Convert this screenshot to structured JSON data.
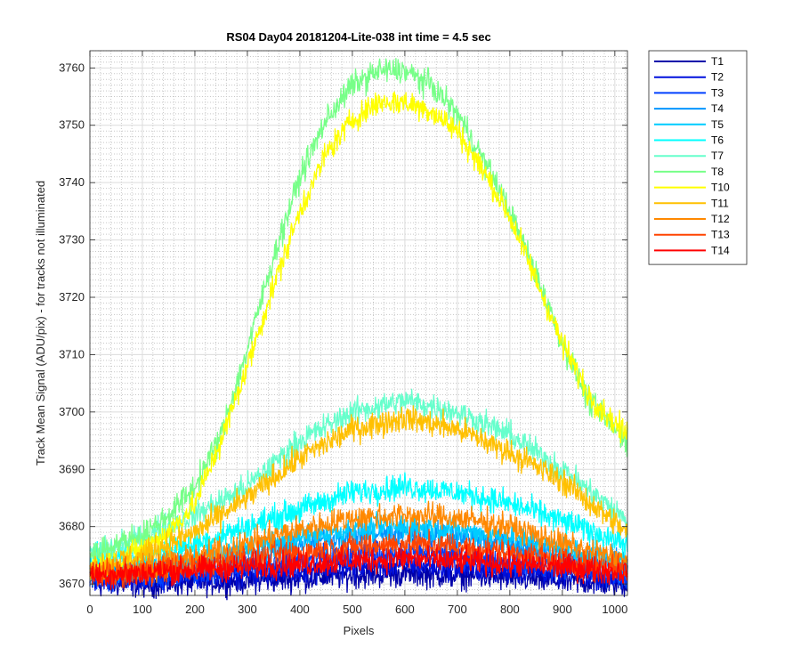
{
  "chart_data": {
    "type": "line",
    "title": "RS04 Day04 20181204-Lite-038 int time = 4.5 sec",
    "xlabel": "Pixels",
    "ylabel": "Track Mean Signal (ADU/pix) - for tracks not illuminated",
    "xlim": [
      0,
      1024
    ],
    "ylim": [
      3668,
      3763
    ],
    "xticks": [
      0,
      100,
      200,
      300,
      400,
      500,
      600,
      700,
      800,
      900,
      1000
    ],
    "yticks": [
      3670,
      3680,
      3690,
      3700,
      3710,
      3720,
      3730,
      3740,
      3750,
      3760
    ],
    "grid": true,
    "minor_grid": true,
    "legend_position": "outside-top-right",
    "noise_amplitude": 1.6,
    "series": [
      {
        "name": "T1",
        "color": "#0000aa",
        "x": [
          0,
          100,
          200,
          300,
          400,
          500,
          600,
          700,
          800,
          900,
          1024
        ],
        "y": [
          3670,
          3670,
          3670.2,
          3670.6,
          3671,
          3671.5,
          3671.8,
          3671.5,
          3671,
          3670.5,
          3670
        ]
      },
      {
        "name": "T2",
        "color": "#0010dd",
        "x": [
          0,
          100,
          200,
          300,
          400,
          500,
          600,
          700,
          800,
          900,
          1024
        ],
        "y": [
          3671,
          3671,
          3671.5,
          3672,
          3672.5,
          3673,
          3673.5,
          3673,
          3672.5,
          3672,
          3671
        ]
      },
      {
        "name": "T3",
        "color": "#0040ff",
        "x": [
          0,
          100,
          200,
          300,
          400,
          500,
          600,
          700,
          800,
          900,
          1024
        ],
        "y": [
          3671,
          3671.5,
          3672,
          3673,
          3674,
          3675,
          3675.5,
          3675,
          3674,
          3673,
          3671.5
        ]
      },
      {
        "name": "T4",
        "color": "#0095ff",
        "x": [
          0,
          100,
          200,
          300,
          400,
          500,
          600,
          700,
          800,
          900,
          1024
        ],
        "y": [
          3672,
          3672.5,
          3673.5,
          3675,
          3677,
          3678.5,
          3679,
          3678.5,
          3677,
          3675,
          3673
        ]
      },
      {
        "name": "T5",
        "color": "#00ccff",
        "x": [
          0,
          100,
          200,
          300,
          400,
          500,
          600,
          700,
          800,
          900,
          1024
        ],
        "y": [
          3672,
          3673,
          3674,
          3676,
          3678,
          3679.5,
          3680,
          3679.5,
          3678,
          3676,
          3674
        ]
      },
      {
        "name": "T6",
        "color": "#00ffff",
        "x": [
          0,
          100,
          200,
          300,
          400,
          500,
          600,
          700,
          800,
          900,
          1024
        ],
        "y": [
          3674,
          3675,
          3677,
          3680,
          3683,
          3686,
          3687,
          3686,
          3684,
          3681,
          3677
        ]
      },
      {
        "name": "T7",
        "color": "#66ffcc",
        "x": [
          0,
          100,
          200,
          300,
          400,
          500,
          600,
          700,
          800,
          900,
          1024
        ],
        "y": [
          3675,
          3678,
          3682,
          3687,
          3695,
          3700,
          3702,
          3700,
          3696,
          3690,
          3681
        ]
      },
      {
        "name": "T8",
        "color": "#77ff88",
        "x": [
          0,
          50,
          100,
          150,
          200,
          250,
          300,
          350,
          400,
          450,
          500,
          550,
          600,
          650,
          700,
          750,
          800,
          850,
          900,
          950,
          1000,
          1024
        ],
        "y": [
          3675,
          3677,
          3678.5,
          3682,
          3687,
          3696,
          3711,
          3727,
          3741,
          3751,
          3757,
          3759.5,
          3759.5,
          3757,
          3752,
          3744,
          3735,
          3724,
          3712,
          3702,
          3697,
          3695
        ]
      },
      {
        "name": "T10",
        "color": "#ffff00",
        "x": [
          0,
          50,
          100,
          150,
          200,
          250,
          300,
          350,
          400,
          450,
          500,
          550,
          600,
          650,
          700,
          750,
          800,
          850,
          900,
          950,
          1000,
          1024
        ],
        "y": [
          3673,
          3674,
          3676,
          3679,
          3684,
          3695,
          3708,
          3722,
          3735,
          3745,
          3751,
          3754,
          3754,
          3752.5,
          3749,
          3742,
          3734,
          3723,
          3712,
          3703,
          3698,
          3696
        ]
      },
      {
        "name": "T11",
        "color": "#ffc000",
        "x": [
          0,
          100,
          200,
          300,
          400,
          500,
          600,
          700,
          800,
          900,
          1024
        ],
        "y": [
          3673,
          3675,
          3679,
          3685,
          3692,
          3697,
          3699,
          3697,
          3693,
          3688,
          3679
        ]
      },
      {
        "name": "T12",
        "color": "#ff8800",
        "x": [
          0,
          100,
          200,
          300,
          400,
          500,
          600,
          700,
          800,
          900,
          1024
        ],
        "y": [
          3672,
          3673,
          3674.5,
          3677,
          3679.5,
          3681.5,
          3682,
          3681.5,
          3680,
          3677,
          3674
        ]
      },
      {
        "name": "T13",
        "color": "#ff4400",
        "x": [
          0,
          100,
          200,
          300,
          400,
          500,
          600,
          700,
          800,
          900,
          1024
        ],
        "y": [
          3671.5,
          3672,
          3673,
          3674.5,
          3675.5,
          3676.5,
          3677,
          3676.5,
          3675.5,
          3674,
          3672.5
        ]
      },
      {
        "name": "T14",
        "color": "#ff0000",
        "x": [
          0,
          100,
          200,
          300,
          400,
          500,
          600,
          700,
          800,
          900,
          1024
        ],
        "y": [
          3671.5,
          3672,
          3672.5,
          3673,
          3673.5,
          3674,
          3674.5,
          3674,
          3673.5,
          3673,
          3672
        ]
      }
    ]
  }
}
